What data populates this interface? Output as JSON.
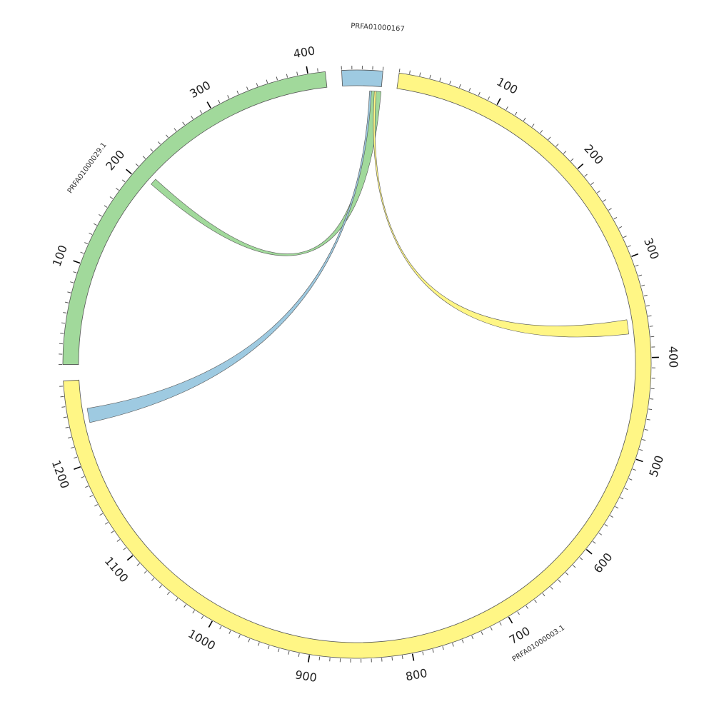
{
  "colors": {
    "PRFA01000167": "#9ecae1",
    "PRFA01000003.1": "#fff685",
    "PRFA01000029.1": "#a1d99b",
    "stroke": "#555555",
    "tick": "#555555"
  },
  "segments": [
    {
      "name": "PRFA01000167",
      "label": "PRFA01000167",
      "length": 40
    },
    {
      "name": "PRFA01000003.1",
      "label": "PRFA01000003.1",
      "length": 1285
    },
    {
      "name": "PRFA01000029.1",
      "label": "PRFA01000029.1",
      "length": 417
    }
  ],
  "tick_labels": {
    "PRFA01000167": [],
    "PRFA01000003.1": [
      "100",
      "200",
      "300",
      "400",
      "500",
      "600",
      "700",
      "800",
      "900",
      "1000",
      "1100",
      "1200"
    ],
    "PRFA01000029.1": [
      "100",
      "200",
      "300",
      "400"
    ]
  },
  "links": [
    {
      "color_of": "PRFA01000029.1",
      "source": {
        "segment": "PRFA01000167",
        "start": 29,
        "end": 40
      },
      "target": {
        "segment": "PRFA01000029.1",
        "start": 205,
        "end": 212
      }
    },
    {
      "color_of": "PRFA01000167",
      "source": {
        "segment": "PRFA01000167",
        "start": 28,
        "end": 30
      },
      "target": {
        "segment": "PRFA01000003.1",
        "start": 1240,
        "end": 1255
      }
    },
    {
      "color_of": "PRFA01000003.1",
      "source": {
        "segment": "PRFA01000167",
        "start": 33,
        "end": 35
      },
      "target": {
        "segment": "PRFA01000003.1",
        "start": 360,
        "end": 375
      }
    }
  ]
}
